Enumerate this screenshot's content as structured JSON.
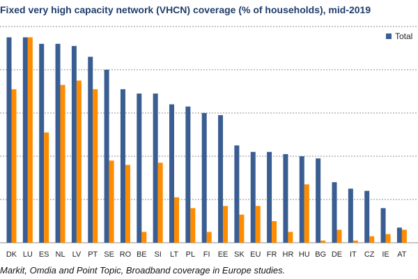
{
  "title": "Fixed very high capacity network (VHCN) coverage (% of households), mid-2019",
  "source": "Markit, Omdia and Point Topic, Broadband coverage in Europe studies.",
  "chart_data": {
    "type": "bar",
    "title": "Fixed very high capacity network (VHCN) coverage (% of households), mid-2019",
    "xlabel": "",
    "ylabel": "",
    "ylim": [
      0,
      100
    ],
    "grid": true,
    "legend_position": "top-right",
    "categories": [
      "DK",
      "LU",
      "ES",
      "NL",
      "LV",
      "PT",
      "SE",
      "RO",
      "BE",
      "SI",
      "LT",
      "PL",
      "FI",
      "EE",
      "SK",
      "EU",
      "FR",
      "HR",
      "HU",
      "BG",
      "DE",
      "IT",
      "CZ",
      "IE",
      "AT"
    ],
    "series": [
      {
        "name": "Total",
        "color": "#3a5e91",
        "values": [
          95,
          95,
          92,
          92,
          91,
          86,
          80,
          71,
          69,
          69,
          64,
          63,
          60,
          59,
          45,
          42,
          42,
          41,
          40,
          39,
          28,
          25,
          24,
          16,
          7
        ]
      },
      {
        "name": "",
        "color": "#ff8c00",
        "values": [
          71,
          95,
          51,
          73,
          75,
          71,
          38,
          36,
          5,
          37,
          21,
          16,
          5,
          17,
          13,
          17,
          10,
          5,
          27,
          1,
          6,
          1,
          3,
          4,
          6
        ]
      }
    ]
  }
}
